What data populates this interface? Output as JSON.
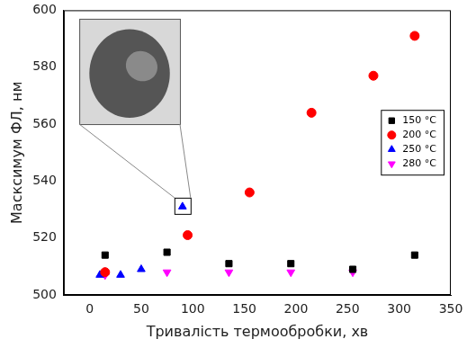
{
  "chart_data": {
    "type": "scatter",
    "x_label": "Тривалість термообробки, хв",
    "y_label": "Масксимум ФЛ, нм",
    "xlim": [
      -25,
      350
    ],
    "xticks": [
      0,
      50,
      100,
      150,
      200,
      250,
      300,
      350
    ],
    "ylim": [
      500,
      600
    ],
    "yticks": [
      500,
      520,
      540,
      560,
      580,
      600
    ],
    "grid": false,
    "legend": "right",
    "series": [
      {
        "name": "150 °C",
        "color": "#000000",
        "marker": "square",
        "x": [
          15,
          75,
          135,
          195,
          255,
          315
        ],
        "values": [
          514,
          515,
          511,
          511,
          509,
          514
        ]
      },
      {
        "name": "200 °C",
        "color": "#ff0000",
        "marker": "circle",
        "x": [
          15,
          95,
          155,
          215,
          275,
          315
        ],
        "values": [
          508,
          521,
          536,
          564,
          577,
          591
        ]
      },
      {
        "name": "250 °C",
        "color": "#0000ff",
        "marker": "triangle",
        "x": [
          10,
          15,
          30,
          50,
          90
        ],
        "values": [
          507,
          508,
          507,
          509,
          531
        ]
      },
      {
        "name": "280 °C",
        "color": "#ff00ff",
        "marker": "triangle_down",
        "x": [
          15,
          75,
          135,
          195,
          255
        ],
        "values": [
          507,
          508,
          508,
          508,
          508
        ]
      }
    ]
  }
}
